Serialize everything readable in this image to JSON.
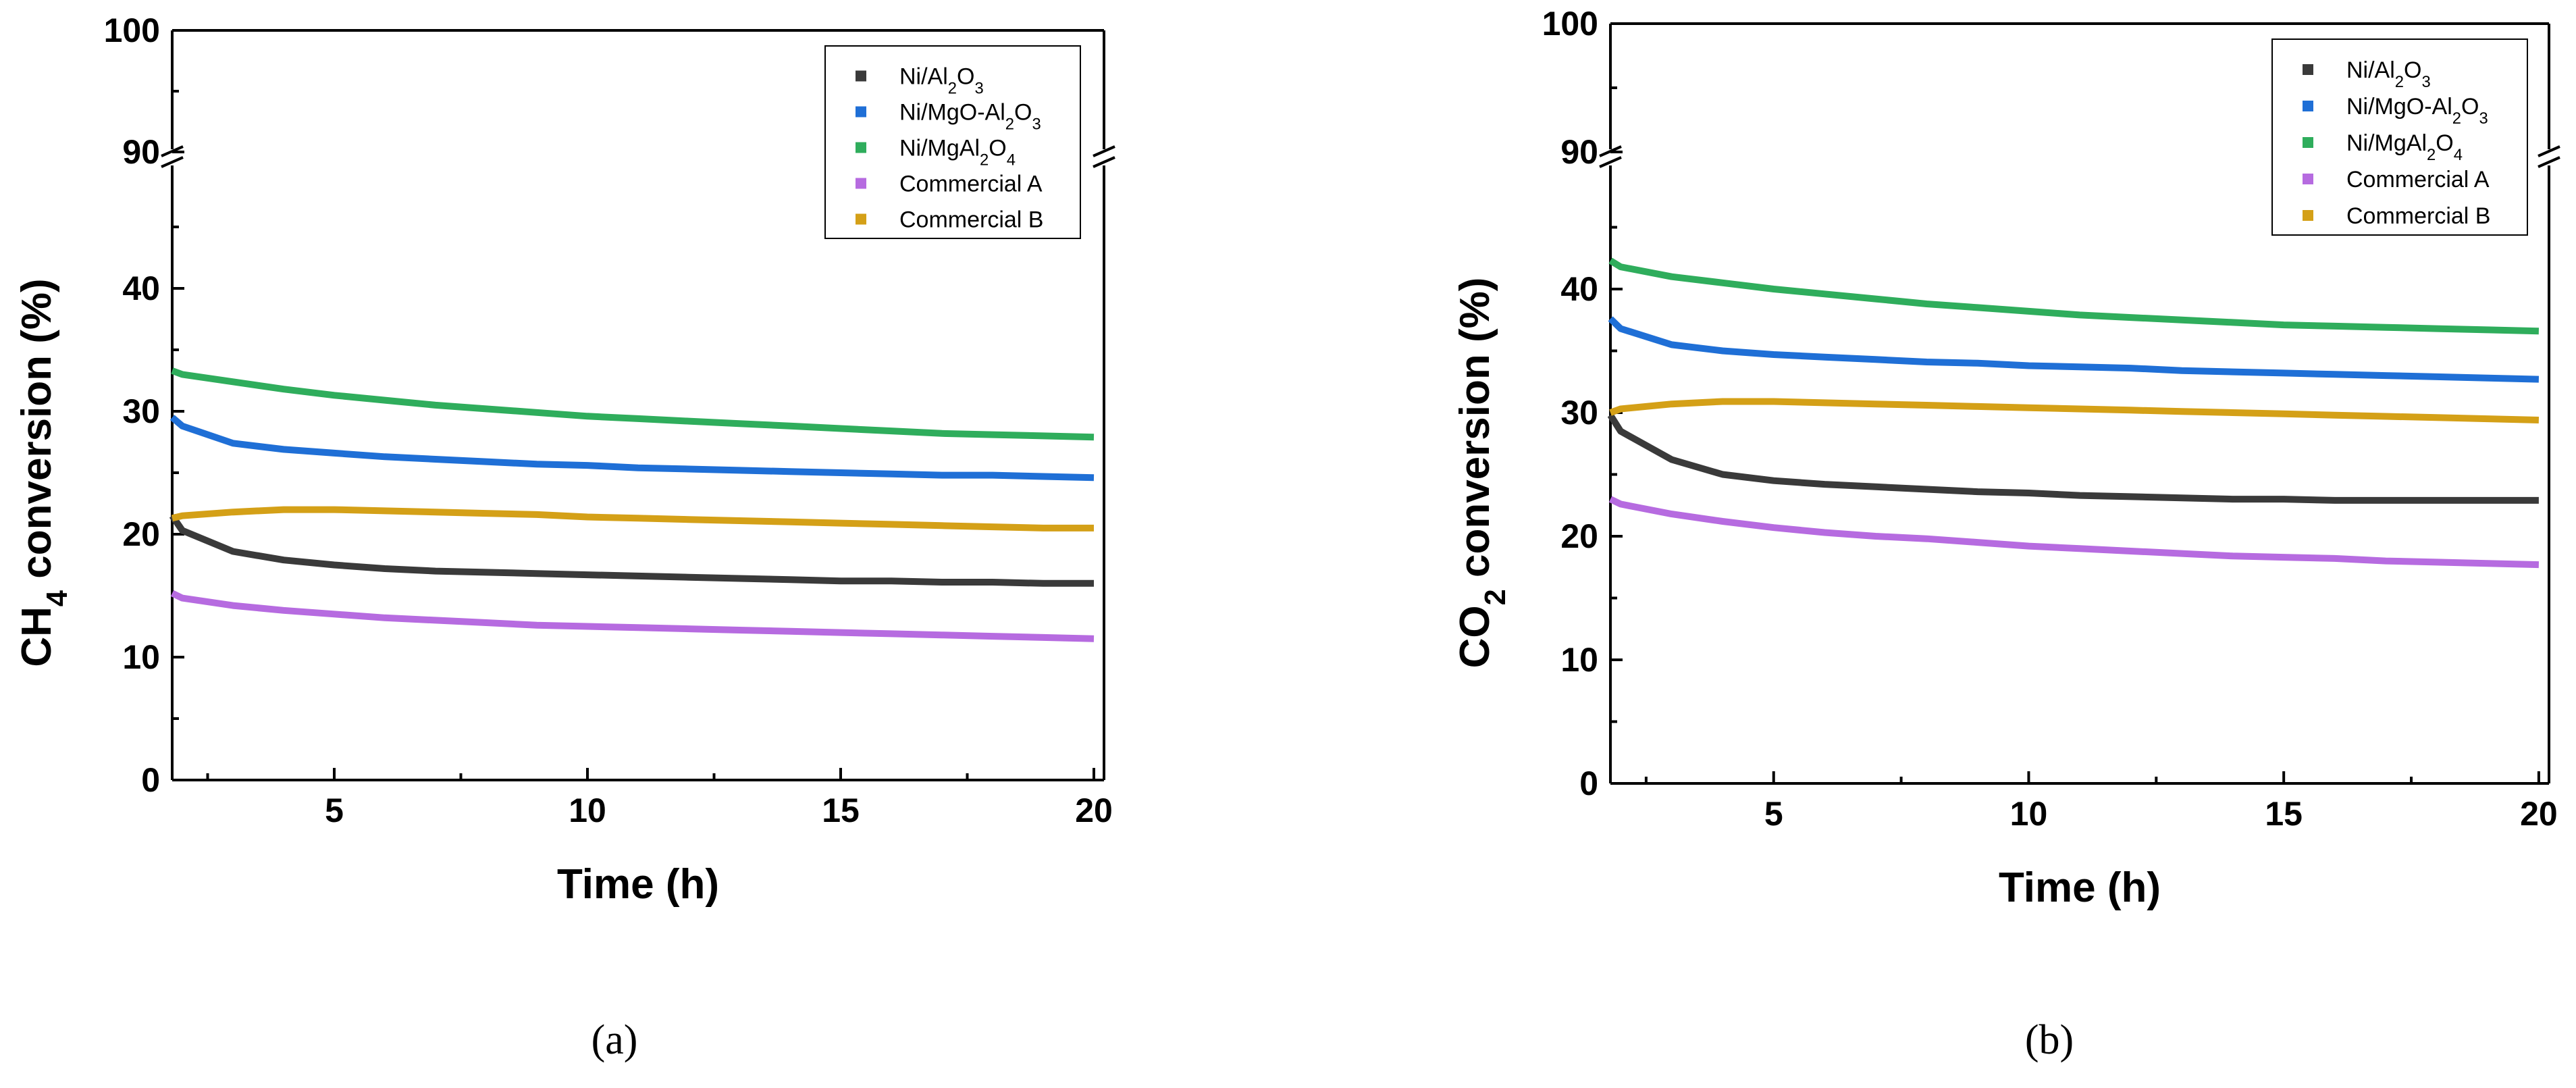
{
  "chart_data": [
    {
      "type": "line",
      "panel_label": "(a)",
      "ylabel_parts": [
        "CH",
        "4",
        " conversion (%)"
      ],
      "xlabel": "Time (h)",
      "xlim": [
        1.8,
        20.2
      ],
      "xticks": [
        5,
        10,
        15,
        20
      ],
      "ylim_lower": [
        0,
        50
      ],
      "ylim_upper": [
        90,
        100
      ],
      "yticks_lower": [
        0,
        10,
        20,
        30,
        40
      ],
      "yticks_upper": [
        90,
        100
      ],
      "axis_break": "between 50 and 90",
      "legend_position": "top-right",
      "x": [
        1.8,
        2,
        3,
        4,
        5,
        6,
        7,
        8,
        9,
        10,
        11,
        12,
        13,
        14,
        15,
        16,
        17,
        18,
        19,
        20
      ],
      "series": [
        {
          "name": "Ni/Al2O3",
          "label_parts": [
            "Ni/Al",
            "2",
            "O",
            "3"
          ],
          "color": "#3a3a3a",
          "values": [
            21.5,
            20.3,
            18.6,
            17.9,
            17.5,
            17.2,
            17.0,
            16.9,
            16.8,
            16.7,
            16.6,
            16.5,
            16.4,
            16.3,
            16.2,
            16.2,
            16.1,
            16.1,
            16.0,
            16.0
          ]
        },
        {
          "name": "Ni/MgO-Al2O3",
          "label_parts": [
            "Ni/MgO-Al",
            "2",
            "O",
            "3"
          ],
          "color": "#1f6fd6",
          "values": [
            29.5,
            28.8,
            27.4,
            26.9,
            26.6,
            26.3,
            26.1,
            25.9,
            25.7,
            25.6,
            25.4,
            25.3,
            25.2,
            25.1,
            25.0,
            24.9,
            24.8,
            24.8,
            24.7,
            24.6
          ]
        },
        {
          "name": "Ni/MgAl2O4",
          "label_parts": [
            "Ni/MgAl",
            "2",
            "O",
            "4"
          ],
          "color": "#2fad5c",
          "values": [
            33.3,
            33.0,
            32.4,
            31.8,
            31.3,
            30.9,
            30.5,
            30.2,
            29.9,
            29.6,
            29.4,
            29.2,
            29.0,
            28.8,
            28.6,
            28.4,
            28.2,
            28.1,
            28.0,
            27.9
          ]
        },
        {
          "name": "Commercial A",
          "label_parts": [
            "Commercial A"
          ],
          "color": "#b66be0",
          "values": [
            15.2,
            14.8,
            14.2,
            13.8,
            13.5,
            13.2,
            13.0,
            12.8,
            12.6,
            12.5,
            12.4,
            12.3,
            12.2,
            12.1,
            12.0,
            11.9,
            11.8,
            11.7,
            11.6,
            11.5
          ]
        },
        {
          "name": "Commercial B",
          "label_parts": [
            "Commercial B"
          ],
          "color": "#d4a017",
          "values": [
            21.3,
            21.5,
            21.8,
            22.0,
            22.0,
            21.9,
            21.8,
            21.7,
            21.6,
            21.4,
            21.3,
            21.2,
            21.1,
            21.0,
            20.9,
            20.8,
            20.7,
            20.6,
            20.5,
            20.5
          ]
        }
      ]
    },
    {
      "type": "line",
      "panel_label": "(b)",
      "ylabel_parts": [
        "CO",
        "2",
        " conversion (%)"
      ],
      "xlabel": "Time (h)",
      "xlim": [
        1.8,
        20.2
      ],
      "xticks": [
        5,
        10,
        15,
        20
      ],
      "ylim_lower": [
        0,
        50
      ],
      "ylim_upper": [
        90,
        100
      ],
      "yticks_lower": [
        0,
        10,
        20,
        30,
        40
      ],
      "yticks_upper": [
        90,
        100
      ],
      "axis_break": "between 50 and 90",
      "legend_position": "top-right",
      "x": [
        1.8,
        2,
        3,
        4,
        5,
        6,
        7,
        8,
        9,
        10,
        11,
        12,
        13,
        14,
        15,
        16,
        17,
        18,
        19,
        20
      ],
      "series": [
        {
          "name": "Ni/Al2O3",
          "label_parts": [
            "Ni/Al",
            "2",
            "O",
            "3"
          ],
          "color": "#3a3a3a",
          "values": [
            29.8,
            28.5,
            26.2,
            25.0,
            24.5,
            24.2,
            24.0,
            23.8,
            23.6,
            23.5,
            23.3,
            23.2,
            23.1,
            23.0,
            23.0,
            22.9,
            22.9,
            22.9,
            22.9,
            22.9
          ]
        },
        {
          "name": "Ni/MgO-Al2O3",
          "label_parts": [
            "Ni/MgO-Al",
            "2",
            "O",
            "3"
          ],
          "color": "#1f6fd6",
          "values": [
            37.6,
            36.8,
            35.5,
            35.0,
            34.7,
            34.5,
            34.3,
            34.1,
            34.0,
            33.8,
            33.7,
            33.6,
            33.4,
            33.3,
            33.2,
            33.1,
            33.0,
            32.9,
            32.8,
            32.7
          ]
        },
        {
          "name": "Ni/MgAl2O4",
          "label_parts": [
            "Ni/MgAl",
            "2",
            "O",
            "4"
          ],
          "color": "#2fad5c",
          "values": [
            42.3,
            41.8,
            41.0,
            40.5,
            40.0,
            39.6,
            39.2,
            38.8,
            38.5,
            38.2,
            37.9,
            37.7,
            37.5,
            37.3,
            37.1,
            37.0,
            36.9,
            36.8,
            36.7,
            36.6
          ]
        },
        {
          "name": "Commercial A",
          "label_parts": [
            "Commercial A"
          ],
          "color": "#b66be0",
          "values": [
            23.0,
            22.6,
            21.8,
            21.2,
            20.7,
            20.3,
            20.0,
            19.8,
            19.5,
            19.2,
            19.0,
            18.8,
            18.6,
            18.4,
            18.3,
            18.2,
            18.0,
            17.9,
            17.8,
            17.7
          ]
        },
        {
          "name": "Commercial B",
          "label_parts": [
            "Commercial B"
          ],
          "color": "#d4a017",
          "values": [
            30.0,
            30.3,
            30.7,
            30.9,
            30.9,
            30.8,
            30.7,
            30.6,
            30.5,
            30.4,
            30.3,
            30.2,
            30.1,
            30.0,
            29.9,
            29.8,
            29.7,
            29.6,
            29.5,
            29.4
          ]
        }
      ]
    }
  ]
}
